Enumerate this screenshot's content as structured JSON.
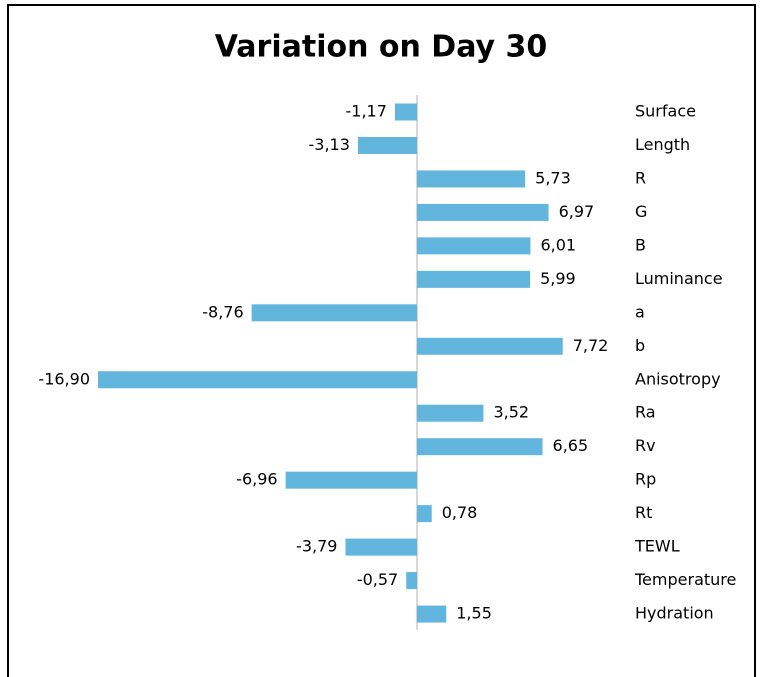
{
  "chart_data": {
    "type": "barh",
    "title": "Variation on Day 30",
    "categories": [
      "Surface",
      "Length",
      "R",
      "G",
      "B",
      "Luminance",
      "a",
      "b",
      "Anisotropy",
      "Ra",
      "Rv",
      "Rp",
      "Rt",
      "TEWL",
      "Temperature",
      "Hydration"
    ],
    "values": [
      -1.17,
      -3.13,
      5.73,
      6.97,
      6.01,
      5.99,
      -8.76,
      7.72,
      -16.9,
      3.52,
      6.65,
      -6.96,
      0.78,
      -3.79,
      -0.57,
      1.55
    ],
    "value_labels": [
      "-1,17",
      "-3,13",
      "5,73",
      "6,97",
      "6,01",
      "5,99",
      "-8,76",
      "7,72",
      "-16,90",
      "3,52",
      "6,65",
      "-6,96",
      "0,78",
      "-3,79",
      "-0,57",
      "1,55"
    ],
    "color": "#62b6de"
  }
}
